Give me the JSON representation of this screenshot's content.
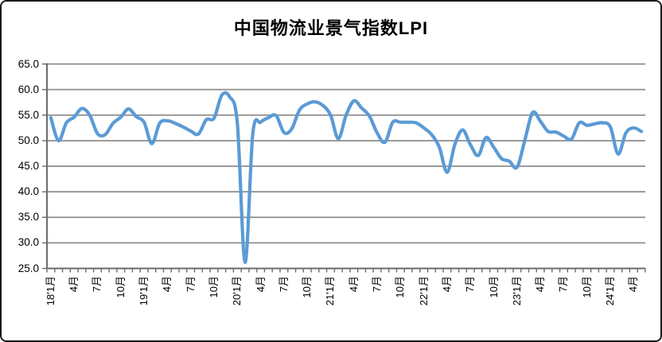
{
  "chart_data": {
    "type": "line",
    "title": "中国物流业景气指数LPI",
    "smooth": true,
    "grid": true,
    "legend": "none",
    "ylim": [
      25,
      65
    ],
    "y_tick_step": 5,
    "y_tick_labels": [
      "65.0",
      "60.0",
      "55.0",
      "50.0",
      "45.0",
      "40.0",
      "35.0",
      "30.0",
      "25.0"
    ],
    "x_tick_labels": [
      "18'1月",
      "4月",
      "7月",
      "10月",
      "19'1月",
      "4月",
      "7月",
      "10月",
      "20'1月",
      "4月",
      "7月",
      "10月",
      "21'1月",
      "4月",
      "7月",
      "10月",
      "22'1月",
      "4月",
      "7月",
      "10月",
      "23'1月",
      "4月",
      "7月",
      "10月",
      "24'1月",
      "4月"
    ],
    "months_per_labeled_tick": 3,
    "minor_tick_every_months": 1,
    "series": [
      {
        "name": "LPI",
        "color": "#5B9BD5",
        "first_month": "2018-01",
        "values": [
          54.5,
          50.0,
          53.5,
          54.6,
          56.3,
          55.0,
          51.4,
          51.2,
          53.4,
          54.6,
          56.2,
          54.7,
          53.6,
          49.4,
          53.4,
          53.9,
          53.4,
          52.7,
          51.9,
          51.3,
          54.1,
          54.4,
          58.9,
          58.6,
          53.4,
          26.2,
          51.5,
          53.6,
          54.5,
          54.9,
          51.6,
          52.3,
          56.0,
          57.2,
          57.6,
          56.9,
          55.0,
          50.4,
          55.0,
          57.8,
          56.4,
          54.8,
          51.5,
          49.7,
          53.6,
          53.6,
          53.6,
          53.5,
          52.5,
          51.2,
          48.7,
          43.8,
          49.3,
          52.1,
          49.2,
          47.1,
          50.6,
          48.7,
          46.5,
          46.0,
          44.8,
          50.1,
          55.5,
          53.8,
          51.8,
          51.7,
          50.9,
          50.3,
          53.5,
          53.0,
          53.3,
          53.5,
          52.7,
          47.4,
          51.5,
          52.5,
          51.8
        ]
      }
    ]
  },
  "style": {
    "background_color": "#FFFFFF",
    "frame_border_color": "#1A1A1A",
    "grid_color": "#8C8C8C",
    "axis_color": "#6B6B6B",
    "line_color": "#5B9BD5",
    "text_color": "#000000"
  }
}
